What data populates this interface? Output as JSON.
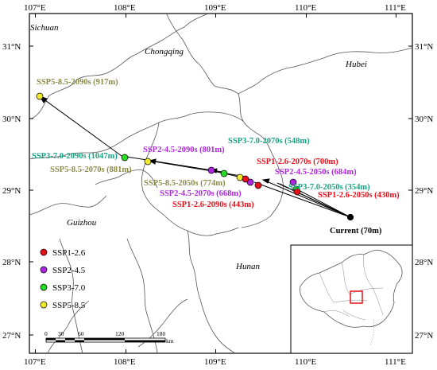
{
  "map": {
    "longitude_ticks": [
      "107°E",
      "108°E",
      "109°E",
      "110°E",
      "111°E"
    ],
    "latitude_ticks": [
      "31°N",
      "30°N",
      "29°N",
      "28°N",
      "27°N"
    ],
    "regions": [
      "Sichuan",
      "Chongqing",
      "Hubei",
      "Guizhou",
      "Hunan"
    ],
    "labels": {
      "current": "Current (70m)",
      "s126_2050": "SSP1-2.6-2050s (430m)",
      "s126_2070": "SSP1-2.6-2070s (700m)",
      "s126_2090": "SSP1-2.6-2090s (443m)",
      "s245_2050": "SSP2-4.5-2050s (684m)",
      "s245_2070": "SSP2-4.5-2070s (668m)",
      "s245_2090": "SSP2-4.5-2090s (801m)",
      "s370_2050": "SSP3-7.0-2050s (354m)",
      "s370_2070": "SSP3-7.0-2070s (548m)",
      "s370_2090": "SSP3-7.0-2090s (1047m)",
      "s585_2050": "SSP5-8.5-2050s (774m)",
      "s585_2070": "SSP5-8.5-2070s (881m)",
      "s585_2090": "SSP5-8.5-2090s (917m)"
    },
    "legend": [
      "SSP1-2.6",
      "SSP2-4.5",
      "SSP3-7.0",
      "SSP5-8.5"
    ],
    "colors": {
      "SSP1-2.6": "#e8101a",
      "SSP2-4.5": "#b026e0",
      "SSP3-7.0": "#22dd22",
      "SSP5-8.5": "#f2e92a",
      "label_ssp126": "#e8101a",
      "label_ssp245": "#b026e0",
      "label_ssp370": "#17a383",
      "label_ssp585": "#8c8a48"
    },
    "scale_bar": {
      "ticks": [
        "0",
        "30",
        "60",
        "120",
        "180"
      ],
      "unit": "km"
    }
  }
}
